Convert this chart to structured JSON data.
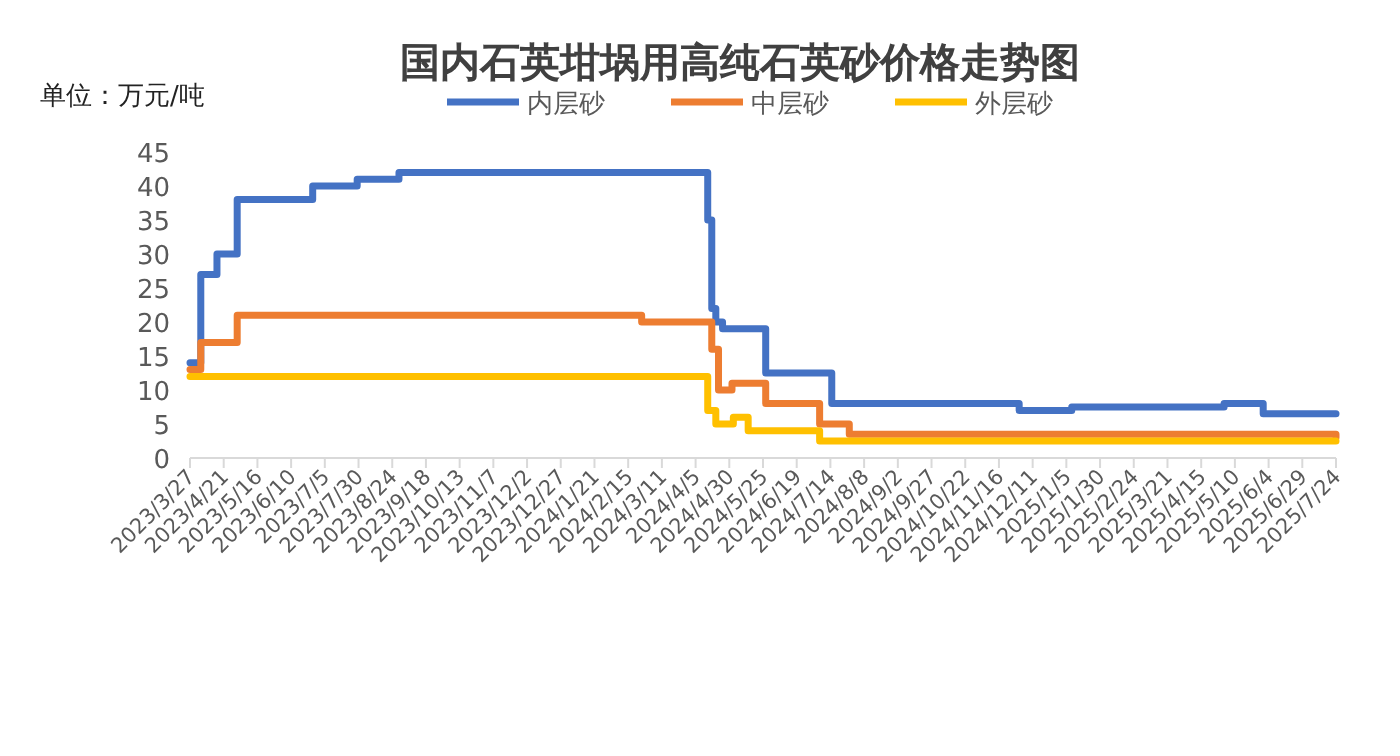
{
  "chart_data": {
    "type": "step",
    "title": "国内石英坩埚用高纯石英砂价格走势图",
    "ylabel": "单位：万元/吨",
    "legend": "top",
    "grid": false,
    "xlim": [
      "2023-03-27",
      "2025-07-24"
    ],
    "xticks": [
      {
        "value": "2023-03-27",
        "label": "2023/3/27"
      },
      {
        "value": "2023-04-21",
        "label": "2023/4/21"
      },
      {
        "value": "2023-05-16",
        "label": "2023/5/16"
      },
      {
        "value": "2023-06-10",
        "label": "2023/6/10"
      },
      {
        "value": "2023-07-05",
        "label": "2023/7/5"
      },
      {
        "value": "2023-07-30",
        "label": "2023/7/30"
      },
      {
        "value": "2023-08-24",
        "label": "2023/8/24"
      },
      {
        "value": "2023-09-18",
        "label": "2023/9/18"
      },
      {
        "value": "2023-10-13",
        "label": "2023/10/13"
      },
      {
        "value": "2023-11-07",
        "label": "2023/11/7"
      },
      {
        "value": "2023-12-02",
        "label": "2023/12/2"
      },
      {
        "value": "2023-12-27",
        "label": "2023/12/27"
      },
      {
        "value": "2024-01-21",
        "label": "2024/1/21"
      },
      {
        "value": "2024-02-15",
        "label": "2024/2/15"
      },
      {
        "value": "2024-03-11",
        "label": "2024/3/11"
      },
      {
        "value": "2024-04-05",
        "label": "2024/4/5"
      },
      {
        "value": "2024-04-30",
        "label": "2024/4/30"
      },
      {
        "value": "2024-05-25",
        "label": "2024/5/25"
      },
      {
        "value": "2024-06-19",
        "label": "2024/6/19"
      },
      {
        "value": "2024-07-14",
        "label": "2024/7/14"
      },
      {
        "value": "2024-08-08",
        "label": "2024/8/8"
      },
      {
        "value": "2024-09-02",
        "label": "2024/9/2"
      },
      {
        "value": "2024-09-27",
        "label": "2024/9/27"
      },
      {
        "value": "2024-10-22",
        "label": "2024/10/22"
      },
      {
        "value": "2024-11-16",
        "label": "2024/11/16"
      },
      {
        "value": "2024-12-11",
        "label": "2024/12/11"
      },
      {
        "value": "2025-01-05",
        "label": "2025/1/5"
      },
      {
        "value": "2025-01-30",
        "label": "2025/1/30"
      },
      {
        "value": "2025-02-24",
        "label": "2025/2/24"
      },
      {
        "value": "2025-03-21",
        "label": "2025/3/21"
      },
      {
        "value": "2025-04-15",
        "label": "2025/4/15"
      },
      {
        "value": "2025-05-10",
        "label": "2025/5/10"
      },
      {
        "value": "2025-06-04",
        "label": "2025/6/4"
      },
      {
        "value": "2025-06-29",
        "label": "2025/6/29"
      },
      {
        "value": "2025-07-24",
        "label": "2025/7/24"
      }
    ],
    "ylim": [
      0,
      45
    ],
    "yticks": [
      0,
      5,
      10,
      15,
      20,
      25,
      30,
      35,
      40,
      45
    ],
    "series": [
      {
        "name": "内层砂",
        "color": "#4472c4",
        "x": [
          "2023-03-27",
          "2023-04-04",
          "2023-04-16",
          "2023-05-01",
          "2023-06-26",
          "2023-07-29",
          "2023-08-29",
          "2024-04-14",
          "2024-04-17",
          "2024-04-20",
          "2024-04-25",
          "2024-05-27",
          "2024-07-15",
          "2024-12-01",
          "2025-01-09",
          "2025-05-02",
          "2025-05-31",
          "2025-07-24"
        ],
        "values": [
          14,
          27,
          30,
          38,
          40,
          41,
          42,
          35,
          22,
          20,
          19,
          12.5,
          8,
          7,
          7.5,
          8,
          6.5,
          6.5
        ]
      },
      {
        "name": "中层砂",
        "color": "#ed7d31",
        "x": [
          "2023-03-27",
          "2023-04-04",
          "2023-05-01",
          "2024-02-25",
          "2024-04-17",
          "2024-04-22",
          "2024-05-02",
          "2024-05-27",
          "2024-07-06",
          "2024-07-28",
          "2025-07-24"
        ],
        "values": [
          13,
          17,
          21,
          20,
          16,
          10,
          11,
          8,
          5,
          3.5,
          3
        ]
      },
      {
        "name": "外层砂",
        "color": "#ffc000",
        "x": [
          "2023-03-27",
          "2024-04-14",
          "2024-04-20",
          "2024-05-03",
          "2024-05-14",
          "2024-07-06",
          "2025-07-24"
        ],
        "values": [
          12,
          7,
          5,
          6,
          4,
          2.5,
          2.5
        ]
      }
    ]
  }
}
